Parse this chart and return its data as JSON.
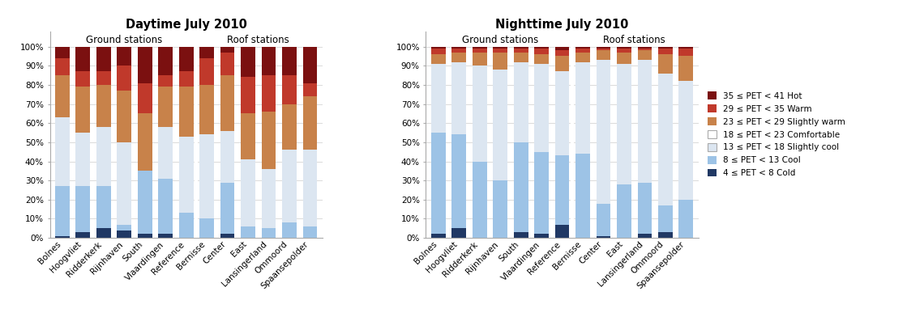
{
  "daytime_categories": [
    "Bolnes",
    "Hoogvliet",
    "Ridderkerk",
    "Rijnhaven",
    "South",
    "Vlaardingen",
    "Reference",
    "Bernisse",
    "Center",
    "East",
    "Lansingerland",
    "Ommoord",
    "Spaansepolder"
  ],
  "nighttime_categories": [
    "Bolnes",
    "Hoogvliet",
    "Ridderkerk",
    "Rijnhaven",
    "South",
    "Vlaardingen",
    "Reference",
    "Bernisse",
    "Center",
    "East",
    "Lansingerland",
    "Ommoord",
    "Spaansepolder"
  ],
  "daytime_data": {
    "cold": [
      1,
      3,
      5,
      4,
      2,
      2,
      0,
      0,
      2,
      0,
      0,
      0,
      0
    ],
    "cool": [
      26,
      24,
      22,
      3,
      33,
      29,
      13,
      10,
      27,
      6,
      5,
      8,
      6
    ],
    "slightly_cool": [
      36,
      28,
      31,
      43,
      0,
      27,
      40,
      44,
      27,
      35,
      31,
      38,
      40
    ],
    "comfortable": [
      0,
      0,
      0,
      0,
      0,
      0,
      0,
      0,
      0,
      0,
      0,
      0,
      0
    ],
    "slightly_warm": [
      22,
      24,
      22,
      27,
      30,
      21,
      26,
      26,
      29,
      24,
      30,
      24,
      28
    ],
    "warm": [
      9,
      8,
      7,
      13,
      16,
      6,
      8,
      14,
      12,
      19,
      19,
      15,
      7
    ],
    "hot": [
      6,
      13,
      13,
      10,
      19,
      15,
      13,
      6,
      3,
      16,
      15,
      15,
      19
    ]
  },
  "nighttime_data": {
    "cold": [
      2,
      5,
      0,
      0,
      3,
      2,
      7,
      0,
      1,
      0,
      2,
      3,
      0
    ],
    "cool": [
      53,
      49,
      40,
      30,
      47,
      43,
      36,
      44,
      17,
      28,
      27,
      14,
      20
    ],
    "slightly_cool": [
      36,
      38,
      50,
      58,
      42,
      46,
      44,
      48,
      75,
      63,
      64,
      69,
      62
    ],
    "comfortable": [
      0,
      0,
      0,
      0,
      0,
      0,
      0,
      0,
      0,
      0,
      0,
      0,
      0
    ],
    "slightly_warm": [
      5,
      5,
      7,
      9,
      5,
      5,
      8,
      5,
      5,
      6,
      5,
      10,
      13
    ],
    "warm": [
      3,
      2,
      2,
      2,
      2,
      3,
      3,
      2,
      1,
      2,
      1,
      3,
      4
    ],
    "hot": [
      1,
      1,
      1,
      1,
      1,
      1,
      2,
      1,
      1,
      1,
      1,
      1,
      1
    ]
  },
  "colors": {
    "cold": "#203864",
    "cool": "#9dc3e6",
    "slightly_cool": "#dce6f1",
    "comfortable": "#ffffff",
    "slightly_warm": "#c8824a",
    "warm": "#c0392b",
    "hot": "#7b1010"
  },
  "legend_labels": {
    "hot": "35 ≤ PET < 41 Hot",
    "warm": "29 ≤ PET < 35 Warm",
    "slightly_warm": "23 ≤ PET < 29 Slightly warm",
    "comfortable": "18 ≤ PET < 23 Comfortable",
    "slightly_cool": "13 ≤ PET < 18 Slightly cool",
    "cool": "8 ≤ PET < 13 Cool",
    "cold": "4 ≤ PET < 8 Cold"
  },
  "ground_label": "Ground stations",
  "roof_label": "Roof stations",
  "daytime_title": "Daytime July 2010",
  "nighttime_title": "Nighttime July 2010",
  "ground_count": 7,
  "roof_count": 6,
  "fig_width": 11.19,
  "fig_height": 3.87,
  "dpi": 100
}
